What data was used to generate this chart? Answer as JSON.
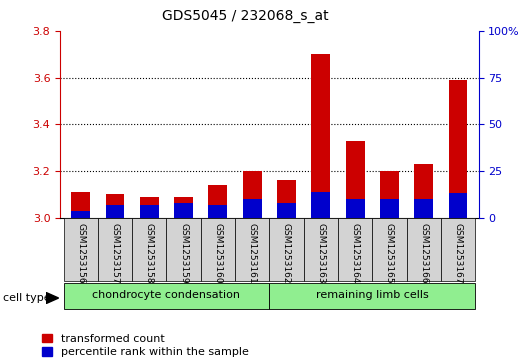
{
  "title": "GDS5045 / 232068_s_at",
  "samples": [
    "GSM1253156",
    "GSM1253157",
    "GSM1253158",
    "GSM1253159",
    "GSM1253160",
    "GSM1253161",
    "GSM1253162",
    "GSM1253163",
    "GSM1253164",
    "GSM1253165",
    "GSM1253166",
    "GSM1253167"
  ],
  "transformed_count": [
    3.11,
    3.1,
    3.09,
    3.09,
    3.14,
    3.2,
    3.16,
    3.7,
    3.33,
    3.2,
    3.23,
    3.59
  ],
  "percentile_rank_pct": [
    3.5,
    7,
    7,
    8,
    7,
    10,
    8,
    14,
    10,
    10,
    10,
    13
  ],
  "ylim_left": [
    3.0,
    3.8
  ],
  "ylim_right": [
    0,
    100
  ],
  "yticks_left": [
    3.0,
    3.2,
    3.4,
    3.6,
    3.8
  ],
  "yticks_right": [
    0,
    25,
    50,
    75,
    100
  ],
  "bar_color_red": "#CC0000",
  "bar_color_blue": "#0000CC",
  "bar_width": 0.55,
  "plot_bg": "#FFFFFF",
  "left_axis_color": "#CC0000",
  "right_axis_color": "#0000CC",
  "title_fontsize": 10,
  "tick_fontsize": 8,
  "legend_fontsize": 8,
  "cell_type_label": "cell type",
  "group1_label": "chondrocyte condensation",
  "group2_label": "remaining limb cells",
  "group_color": "#90EE90",
  "sample_box_color": "#D3D3D3",
  "gridline_ticks": [
    3.2,
    3.4,
    3.6
  ]
}
